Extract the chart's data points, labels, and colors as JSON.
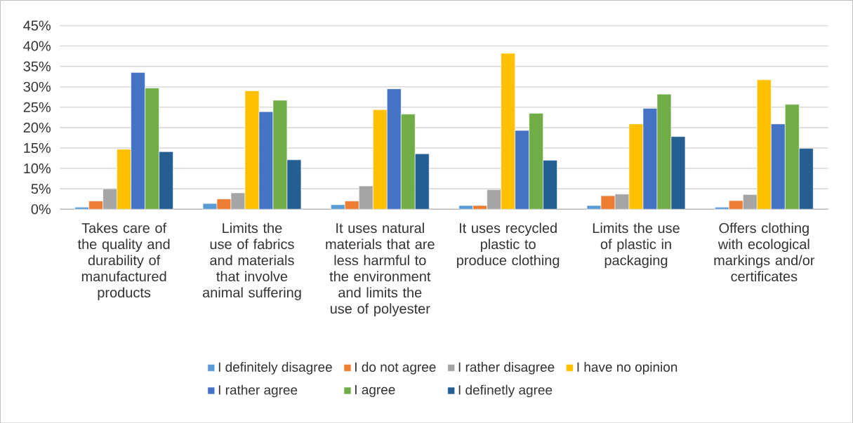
{
  "chart_data": {
    "type": "bar",
    "categories": [
      "Takes care of the quality and durability of manufactured products",
      "Limits the use of fabrics and materials that involve animal suffering",
      "It uses natural materials that are less harmful to the environment and limits the use of polyester",
      "It uses recycled plastic to produce clothing",
      "Limits the use of plastic in packaging",
      "Offers clothing with ecological markings and/or certificates"
    ],
    "series": [
      {
        "name": "I definitely disagree",
        "color": "#5b9bd5",
        "values": [
          0.5,
          1.4,
          1.1,
          0.9,
          0.9,
          0.5
        ]
      },
      {
        "name": "I do not agree",
        "color": "#ed7d31",
        "values": [
          2.0,
          2.5,
          2.0,
          0.9,
          3.3,
          2.1
        ]
      },
      {
        "name": "I rather disagree",
        "color": "#a5a5a5",
        "values": [
          5.0,
          4.0,
          5.7,
          4.8,
          3.7,
          3.6
        ]
      },
      {
        "name": "I have no opinion",
        "color": "#ffc000",
        "values": [
          14.7,
          29.0,
          24.4,
          38.2,
          20.9,
          31.7
        ]
      },
      {
        "name": "I rather agree",
        "color": "#4472c4",
        "values": [
          33.5,
          23.9,
          29.5,
          19.3,
          24.7,
          20.9
        ]
      },
      {
        "name": "I agree",
        "color": "#70ad47",
        "values": [
          29.7,
          26.7,
          23.3,
          23.5,
          28.2,
          25.7
        ]
      },
      {
        "name": "I definetly agree",
        "color": "#255e91",
        "values": [
          14.1,
          12.1,
          13.6,
          12.0,
          17.8,
          14.9
        ]
      }
    ],
    "ylim": [
      0,
      45
    ],
    "yticks": [
      {
        "value": 0,
        "label": "0%"
      },
      {
        "value": 5,
        "label": "5%"
      },
      {
        "value": 10,
        "label": "10%"
      },
      {
        "value": 15,
        "label": "15%"
      },
      {
        "value": 20,
        "label": "20%"
      },
      {
        "value": 25,
        "label": "25%"
      },
      {
        "value": 30,
        "label": "30%"
      },
      {
        "value": 35,
        "label": "35%"
      },
      {
        "value": 40,
        "label": "40%"
      },
      {
        "value": 45,
        "label": "45%"
      }
    ],
    "grid": "y",
    "legend": "bottom"
  }
}
